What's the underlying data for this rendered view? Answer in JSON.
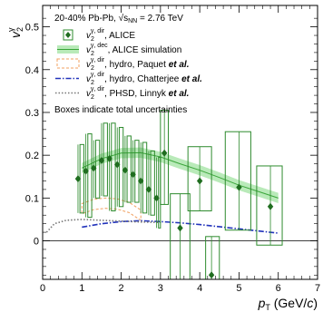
{
  "chart_data": {
    "type": "scatter",
    "title": "",
    "xlabel": {
      "main": "p",
      "sub": "T",
      "rest": " (GeV/",
      "italic_c": "c",
      "close": ")"
    },
    "ylabel": {
      "main": "v",
      "sub": "2",
      "sup": "γ"
    },
    "xlim": [
      0,
      7
    ],
    "ylim": [
      -0.09,
      0.55
    ],
    "x_ticks": [
      "0",
      "1",
      "2",
      "3",
      "4",
      "5",
      "6",
      "7"
    ],
    "x_tick_values": [
      0,
      1,
      2,
      3,
      4,
      5,
      6,
      7
    ],
    "y_ticks": [
      "0",
      "0.1",
      "0.2",
      "0.3",
      "0.4",
      "0.5"
    ],
    "y_tick_values": [
      0,
      0.1,
      0.2,
      0.3,
      0.4,
      0.5
    ],
    "header": "20-40% Pb-Pb, √s",
    "header_sub": "NN",
    "header_tail": " = 2.76 TeV",
    "legend": [
      {
        "sym": "v",
        "sub": "2",
        "sup": "γ, dir",
        "text": ", ALICE",
        "italic": ""
      },
      {
        "sym": "v",
        "sub": "2",
        "sup": "γ, dec",
        "text": ", ALICE simulation",
        "italic": ""
      },
      {
        "sym": "v",
        "sub": "2",
        "sup": "γ, dir",
        "text": ", hydro, Paquet ",
        "italic": "et al."
      },
      {
        "sym": "v",
        "sub": "2",
        "sup": "γ, dir",
        "text": ", hydro, Chatterjee ",
        "italic": "et al."
      },
      {
        "sym": "v",
        "sub": "2",
        "sup": "γ, dir",
        "text": ", PHSD, Linnyk ",
        "italic": "et al."
      }
    ],
    "note": "Boxes indicate total uncertainties",
    "alice": {
      "name": "ALICE",
      "x": [
        0.9,
        1.1,
        1.3,
        1.5,
        1.7,
        1.9,
        2.1,
        2.3,
        2.5,
        2.7,
        2.9,
        3.1,
        3.5,
        4.0,
        4.3,
        5.0,
        5.8
      ],
      "y": [
        0.145,
        0.163,
        0.17,
        0.188,
        0.192,
        0.178,
        0.165,
        0.155,
        0.14,
        0.12,
        0.1,
        0.205,
        0.03,
        0.14,
        -0.08,
        0.125,
        0.08
      ],
      "box_lo": [
        0.065,
        0.055,
        0.1,
        0.105,
        0.07,
        0.08,
        0.09,
        0.09,
        0.065,
        0.06,
        0.03,
        0.085,
        -0.1,
        0.07,
        -0.1,
        0.025,
        -0.01
      ],
      "box_hi": [
        0.225,
        0.25,
        0.235,
        0.275,
        0.275,
        0.265,
        0.245,
        0.235,
        0.23,
        0.21,
        0.195,
        0.305,
        0.11,
        0.22,
        0.01,
        0.255,
        0.175
      ],
      "box_x0": [
        0.95,
        1.15,
        1.35,
        1.55,
        1.75,
        1.95,
        2.15,
        2.35,
        2.55,
        2.75,
        2.95,
        3.0,
        3.25,
        3.7,
        4.15,
        4.65,
        5.45
      ],
      "box_x1": [
        1.05,
        1.25,
        1.45,
        1.65,
        1.85,
        2.05,
        2.25,
        2.45,
        2.65,
        2.85,
        3.0,
        3.2,
        3.75,
        4.3,
        4.5,
        5.3,
        6.1
      ],
      "color": "#2e8b2e"
    },
    "decay": {
      "name": "ALICE simulation",
      "x": [
        1.0,
        1.5,
        2.0,
        2.5,
        3.0,
        3.5,
        4.0,
        4.5,
        5.0,
        5.5,
        6.0
      ],
      "y": [
        0.17,
        0.192,
        0.205,
        0.206,
        0.196,
        0.18,
        0.165,
        0.148,
        0.13,
        0.115,
        0.1
      ],
      "band": 0.012,
      "color": "#7fd97f"
    },
    "paquet": {
      "name": "hydro, Paquet et al.",
      "x": [
        1.0,
        1.3,
        1.6,
        1.9,
        2.2,
        2.5
      ],
      "y": [
        0.075,
        0.085,
        0.088,
        0.086,
        0.078,
        0.06
      ],
      "band": 0.012,
      "color": "#f0a060"
    },
    "chatterjee": {
      "name": "hydro, Chatterjee et al.",
      "x": [
        1.0,
        1.5,
        2.0,
        2.5,
        3.0,
        3.5,
        4.0,
        4.5,
        5.0,
        5.5,
        6.0
      ],
      "y": [
        0.032,
        0.04,
        0.045,
        0.047,
        0.045,
        0.042,
        0.038,
        0.033,
        0.028,
        0.023,
        0.018
      ],
      "color": "#2233bb"
    },
    "phsd": {
      "name": "PHSD, Linnyk et al.",
      "x": [
        0.1,
        0.3,
        0.6,
        1.0,
        1.5,
        2.0,
        2.5,
        3.0
      ],
      "y": [
        0.02,
        0.04,
        0.048,
        0.05,
        0.048,
        0.046,
        0.044,
        0.043
      ],
      "color": "#777777"
    }
  }
}
